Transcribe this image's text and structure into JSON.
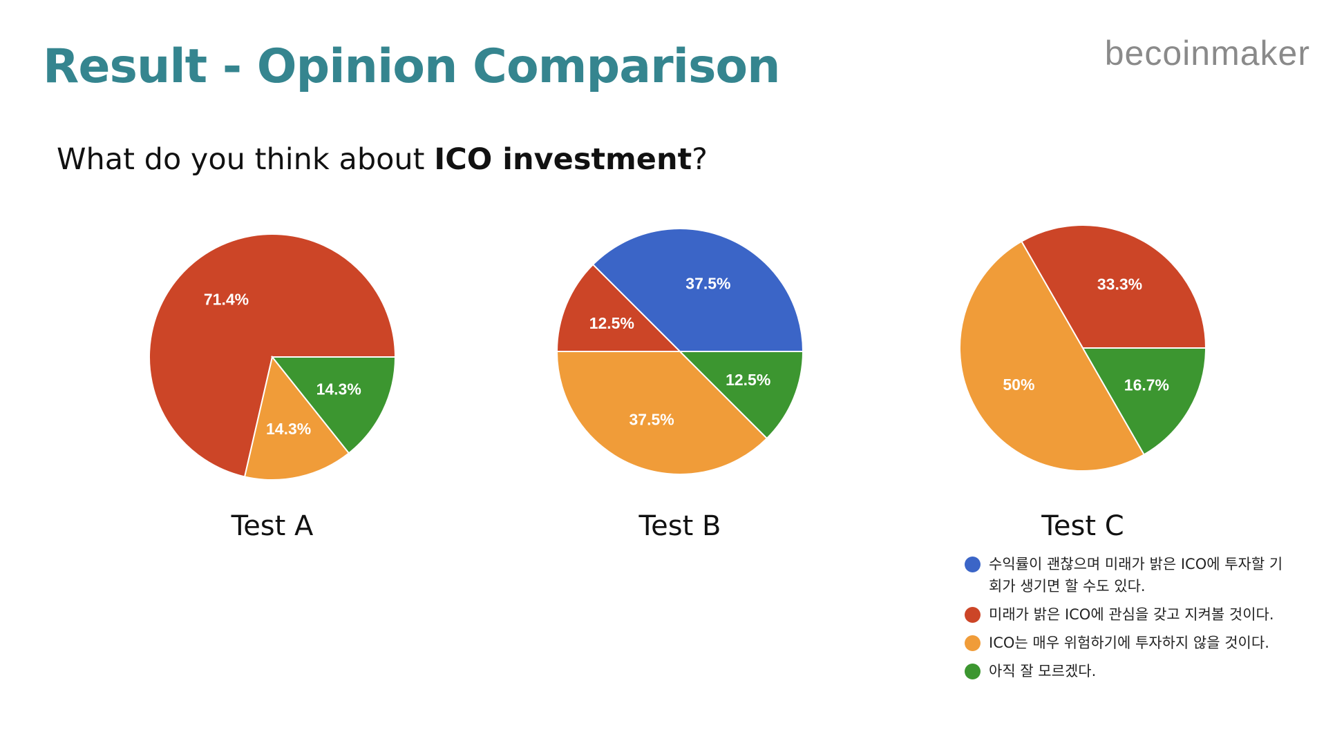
{
  "title": "Result - Opinion Comparison",
  "brand": "becoinmaker",
  "question": {
    "prefix": "What do you think about ",
    "bold": "ICO investment",
    "suffix": "?"
  },
  "legend": [
    {
      "label": "수익률이 괜찮으며 미래가 밝은 ICO에 투자할 기회가 생기면 할 수도 있다.",
      "color": "#3b65c7"
    },
    {
      "label": "미래가 밝은 ICO에 관심을 갖고 지켜볼 것이다.",
      "color": "#cc4527"
    },
    {
      "label": "ICO는 매우 위험하기에 투자하지 않을 것이다.",
      "color": "#f09c39"
    },
    {
      "label": "아직 잘 모르겠다.",
      "color": "#3c9630"
    }
  ],
  "chart_data": [
    {
      "type": "pie",
      "title": "Test A",
      "slices": [
        {
          "legend_index": 1,
          "value": 71.4,
          "label": "71.4%"
        },
        {
          "legend_index": 2,
          "value": 14.3,
          "label": "14.3%"
        },
        {
          "legend_index": 3,
          "value": 14.3,
          "label": "14.3%"
        }
      ]
    },
    {
      "type": "pie",
      "title": "Test B",
      "slices": [
        {
          "legend_index": 0,
          "value": 37.5,
          "label": "37.5%"
        },
        {
          "legend_index": 1,
          "value": 12.5,
          "label": "12.5%"
        },
        {
          "legend_index": 2,
          "value": 37.5,
          "label": "37.5%"
        },
        {
          "legend_index": 3,
          "value": 12.5,
          "label": "12.5%"
        }
      ]
    },
    {
      "type": "pie",
      "title": "Test C",
      "slices": [
        {
          "legend_index": 1,
          "value": 33.3,
          "label": "33.3%"
        },
        {
          "legend_index": 2,
          "value": 50,
          "label": "50%"
        },
        {
          "legend_index": 3,
          "value": 16.7,
          "label": "16.7%"
        }
      ]
    }
  ]
}
